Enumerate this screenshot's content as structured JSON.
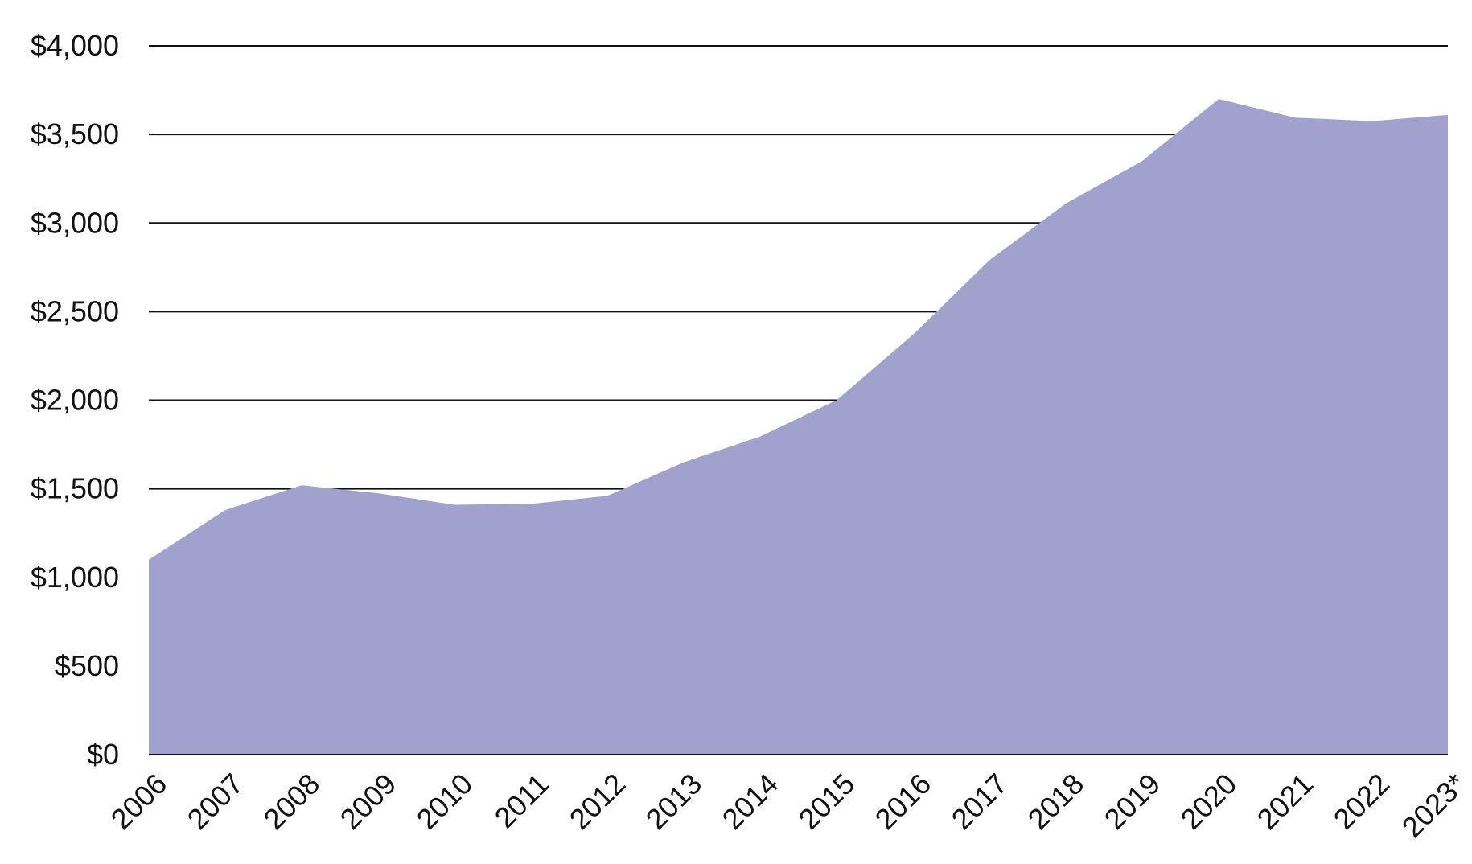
{
  "chart_data": {
    "type": "area",
    "title": "",
    "xlabel": "",
    "ylabel": "",
    "categories": [
      "2006",
      "2007",
      "2008",
      "2009",
      "2010",
      "2011",
      "2012",
      "2013",
      "2014",
      "2015",
      "2016",
      "2017",
      "2018",
      "2019",
      "2020",
      "2021",
      "2022",
      "2023*"
    ],
    "values": [
      1100,
      1380,
      1520,
      1475,
      1410,
      1415,
      1460,
      1650,
      1795,
      2000,
      2370,
      2790,
      3110,
      3350,
      3700,
      3595,
      3575,
      3610
    ],
    "ylim": [
      0,
      4000
    ],
    "yticks": [
      0,
      500,
      1000,
      1500,
      2000,
      2500,
      3000,
      3500,
      4000
    ],
    "ytick_labels": [
      "$0",
      "$500",
      "$1,000",
      "$1,500",
      "$2,000",
      "$2,500",
      "$3,000",
      "$3,500",
      "$4,000"
    ],
    "grid": "horizontal lines, drawn behind the area",
    "fill_color": "#A1A1CD",
    "grid_color": "#111111",
    "text_color": "#111111",
    "legend": "none"
  }
}
